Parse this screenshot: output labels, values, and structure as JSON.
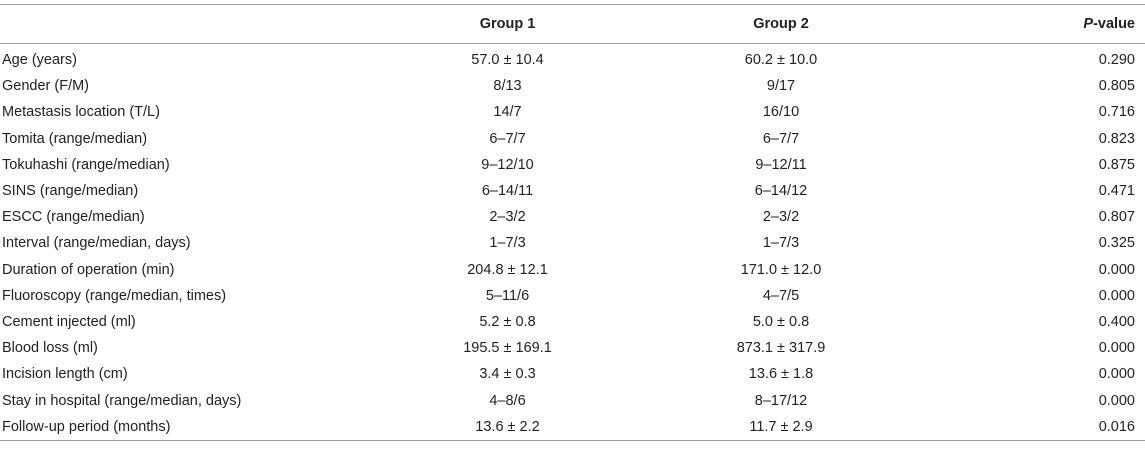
{
  "table": {
    "headers": {
      "label": "",
      "group1": "Group 1",
      "group2": "Group 2",
      "p_italic": "P",
      "p_rest": "-value"
    },
    "rows": [
      {
        "label": "Age (years)",
        "group1": "57.0 ± 10.4",
        "group2": "60.2 ± 10.0",
        "p": "0.290"
      },
      {
        "label": "Gender (F/M)",
        "group1": "8/13",
        "group2": "9/17",
        "p": "0.805"
      },
      {
        "label": "Metastasis location (T/L)",
        "group1": "14/7",
        "group2": "16/10",
        "p": "0.716"
      },
      {
        "label": "Tomita (range/median)",
        "group1": "6–7/7",
        "group2": "6–7/7",
        "p": "0.823"
      },
      {
        "label": "Tokuhashi (range/median)",
        "group1": "9–12/10",
        "group2": "9–12/11",
        "p": "0.875"
      },
      {
        "label": "SINS (range/median)",
        "group1": "6–14/11",
        "group2": "6–14/12",
        "p": "0.471"
      },
      {
        "label": "ESCC (range/median)",
        "group1": "2–3/2",
        "group2": "2–3/2",
        "p": "0.807"
      },
      {
        "label": "Interval (range/median, days)",
        "group1": "1–7/3",
        "group2": "1–7/3",
        "p": "0.325"
      },
      {
        "label": "Duration of operation (min)",
        "group1": "204.8 ± 12.1",
        "group2": "171.0 ± 12.0",
        "p": "0.000"
      },
      {
        "label": "Fluoroscopy (range/median, times)",
        "group1": "5–11/6",
        "group2": "4–7/5",
        "p": "0.000"
      },
      {
        "label": "Cement injected (ml)",
        "group1": "5.2 ± 0.8",
        "group2": "5.0 ± 0.8",
        "p": "0.400"
      },
      {
        "label": "Blood loss (ml)",
        "group1": "195.5 ± 169.1",
        "group2": "873.1 ± 317.9",
        "p": "0.000"
      },
      {
        "label": "Incision length (cm)",
        "group1": "3.4 ± 0.3",
        "group2": "13.6 ± 1.8",
        "p": "0.000"
      },
      {
        "label": "Stay in hospital (range/median, days)",
        "group1": "4–8/6",
        "group2": "8–17/12",
        "p": "0.000"
      },
      {
        "label": "Follow-up period (months)",
        "group1": "13.6 ± 2.2",
        "group2": "11.7 ± 2.9",
        "p": "0.016"
      }
    ]
  }
}
